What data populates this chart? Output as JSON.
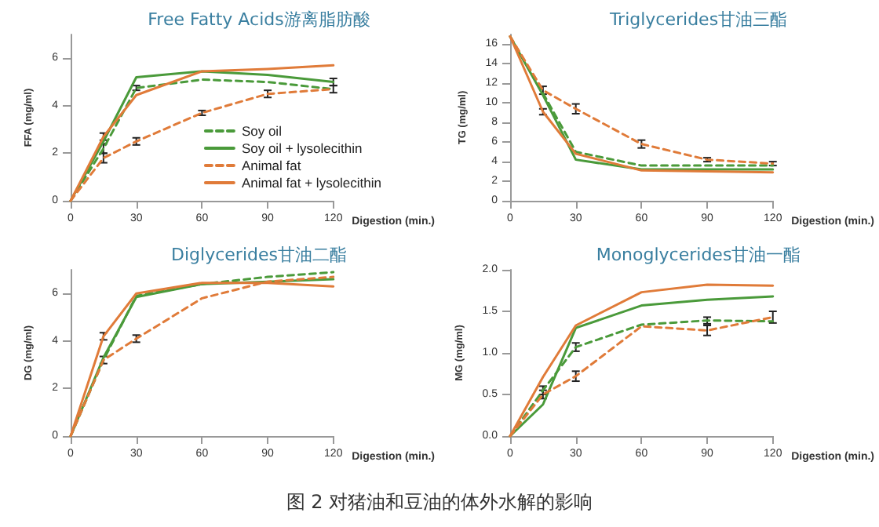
{
  "chart_data": [
    {
      "type": "line",
      "title": "Free Fatty Acids游离脂肪酸",
      "xlabel": "Digestion (min.)",
      "ylabel": "FFA (mg/ml)",
      "x": [
        0,
        15,
        30,
        60,
        90,
        120
      ],
      "xlim": [
        0,
        120
      ],
      "xticks": [
        0,
        30,
        60,
        90,
        120
      ],
      "ylim": [
        0,
        7
      ],
      "yticks": [
        0,
        2,
        4,
        6
      ],
      "legend": "bottom right",
      "annotations": [
        "图 2 对猪油和豆油的体外水解的影响"
      ],
      "series": [
        {
          "name": "Soy oil",
          "color": "#4a9a3a",
          "line_style": "dashed",
          "values": [
            0,
            2.2,
            4.75,
            5.1,
            5.0,
            4.7
          ],
          "errors": [
            null,
            0.2,
            0.1,
            null,
            null,
            null
          ]
        },
        {
          "name": "Soy oil + lysolecithin",
          "color": "#4a9a3a",
          "line_style": "solid",
          "values": [
            0,
            2.5,
            5.2,
            5.45,
            5.3,
            5.0
          ],
          "errors": [
            null,
            null,
            null,
            null,
            null,
            0.15
          ]
        },
        {
          "name": "Animal fat",
          "color": "#e07b39",
          "line_style": "dashed",
          "values": [
            0,
            1.8,
            2.5,
            3.7,
            4.5,
            4.7
          ],
          "errors": [
            null,
            0.2,
            0.15,
            0.1,
            0.15,
            0.15
          ]
        },
        {
          "name": "Animal fat + lysolecithin",
          "color": "#e07b39",
          "line_style": "solid",
          "values": [
            0,
            2.7,
            4.45,
            5.45,
            5.55,
            5.7
          ],
          "errors": [
            null,
            0.15,
            null,
            null,
            null,
            null
          ]
        }
      ]
    },
    {
      "type": "line",
      "title": "Triglycerides甘油三酯",
      "xlabel": "Digestion (min.)",
      "ylabel": "TG (mg/ml)",
      "x": [
        0,
        15,
        30,
        60,
        90,
        120
      ],
      "xlim": [
        0,
        120
      ],
      "xticks": [
        0,
        30,
        60,
        90,
        120
      ],
      "ylim": [
        0,
        17
      ],
      "yticks": [
        0,
        2,
        4,
        6,
        8,
        10,
        12,
        14,
        16
      ],
      "series": [
        {
          "color": "#4a9a3a",
          "line_style": "dashed",
          "values": [
            16.8,
            11,
            5.0,
            3.6,
            3.6,
            3.6
          ]
        },
        {
          "color": "#4a9a3a",
          "line_style": "solid",
          "values": [
            16.8,
            10.8,
            4.2,
            3.2,
            3.2,
            3.2
          ]
        },
        {
          "color": "#e07b39",
          "line_style": "dashed",
          "values": [
            16.8,
            11.3,
            9.4,
            5.8,
            4.2,
            3.8
          ],
          "errors": [
            null,
            0.4,
            0.5,
            0.4,
            0.2,
            0.2
          ]
        },
        {
          "color": "#e07b39",
          "line_style": "solid",
          "values": [
            16.8,
            9.1,
            4.8,
            3.1,
            3.0,
            2.9
          ],
          "errors": [
            null,
            0.3,
            null,
            null,
            null,
            null
          ]
        }
      ]
    },
    {
      "type": "line",
      "title": "Diglycerides甘油二酯",
      "xlabel": "Digestion (min.)",
      "ylabel": "DG (mg/ml)",
      "x": [
        0,
        15,
        30,
        60,
        90,
        120
      ],
      "xlim": [
        0,
        120
      ],
      "xticks": [
        0,
        30,
        60,
        90,
        120
      ],
      "ylim": [
        0,
        7
      ],
      "yticks": [
        0,
        2,
        4,
        6
      ],
      "series": [
        {
          "color": "#4a9a3a",
          "line_style": "dashed",
          "values": [
            0,
            3.2,
            5.9,
            6.4,
            6.7,
            6.9
          ],
          "errors": [
            null,
            0.15,
            null,
            null,
            null,
            null
          ]
        },
        {
          "color": "#4a9a3a",
          "line_style": "solid",
          "values": [
            0,
            3.3,
            5.85,
            6.4,
            6.5,
            6.6
          ]
        },
        {
          "color": "#e07b39",
          "line_style": "dashed",
          "values": [
            0,
            3.2,
            4.1,
            5.8,
            6.5,
            6.7
          ],
          "errors": [
            null,
            null,
            0.15,
            null,
            null,
            null
          ]
        },
        {
          "color": "#e07b39",
          "line_style": "solid",
          "values": [
            0,
            4.2,
            6.0,
            6.45,
            6.45,
            6.3
          ],
          "errors": [
            null,
            0.15,
            null,
            null,
            null,
            null
          ]
        }
      ]
    },
    {
      "type": "line",
      "title": "Monoglycerides甘油一酯",
      "xlabel": "Digestion (min.)",
      "ylabel": "MG (mg/ml)",
      "x": [
        0,
        15,
        30,
        60,
        90,
        120
      ],
      "xlim": [
        0,
        120
      ],
      "xticks": [
        0,
        30,
        60,
        90,
        120
      ],
      "ylim": [
        0,
        2
      ],
      "yticks": [
        {
          "value": 0,
          "label": "0.0"
        },
        {
          "value": 0.5,
          "label": "0.5"
        },
        {
          "value": 1,
          "label": "1.0"
        },
        {
          "value": 1.5,
          "label": "1.5"
        },
        {
          "value": 2,
          "label": "2.0"
        }
      ],
      "series": [
        {
          "color": "#4a9a3a",
          "line_style": "dashed",
          "values": [
            0,
            0.55,
            1.07,
            1.34,
            1.39,
            1.38
          ],
          "errors": [
            null,
            0.05,
            0.05,
            null,
            0.04,
            null
          ]
        },
        {
          "color": "#4a9a3a",
          "line_style": "solid",
          "values": [
            0,
            0.38,
            1.3,
            1.57,
            1.64,
            1.68
          ]
        },
        {
          "color": "#e07b39",
          "line_style": "dashed",
          "values": [
            0,
            0.5,
            0.72,
            1.32,
            1.27,
            1.43
          ],
          "errors": [
            null,
            0.05,
            0.06,
            null,
            0.06,
            0.07
          ]
        },
        {
          "color": "#e07b39",
          "line_style": "solid",
          "values": [
            0,
            0.71,
            1.33,
            1.73,
            1.82,
            1.81
          ]
        }
      ]
    }
  ]
}
